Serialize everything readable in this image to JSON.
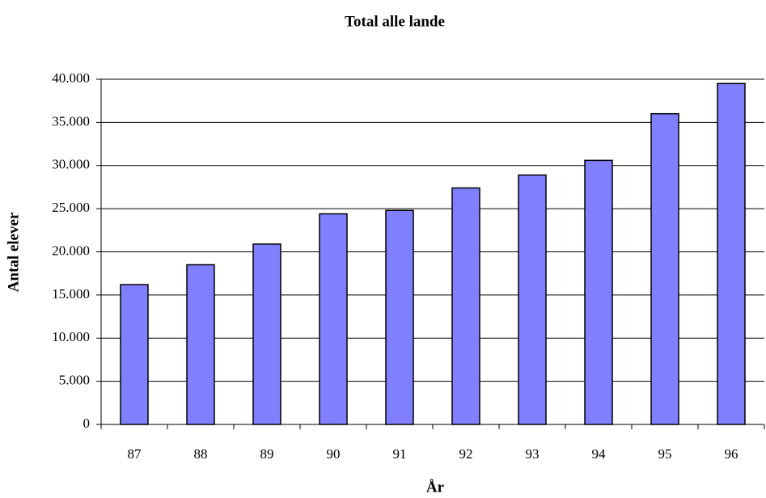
{
  "chart_data": {
    "type": "bar",
    "title": "Total alle lande",
    "x_label": "År",
    "y_label": "Antal elever",
    "categories": [
      "87",
      "88",
      "89",
      "90",
      "91",
      "92",
      "93",
      "94",
      "95",
      "96"
    ],
    "values": [
      16200,
      18500,
      20900,
      24400,
      24800,
      27400,
      28900,
      30600,
      36000,
      39500
    ],
    "color": "#8080ff",
    "ylim": [
      0,
      40000
    ],
    "yticks": [
      0,
      {
        "value": 5000,
        "label": "5.000"
      },
      {
        "value": 10000,
        "label": "10.000"
      },
      {
        "value": 15000,
        "label": "15.000"
      },
      {
        "value": 20000,
        "label": "20.000"
      },
      {
        "value": 25000,
        "label": "25.000"
      },
      {
        "value": 30000,
        "label": "30.000"
      },
      {
        "value": 35000,
        "label": "35.000"
      },
      {
        "value": 40000,
        "label": "40.000"
      }
    ],
    "grid": true
  }
}
